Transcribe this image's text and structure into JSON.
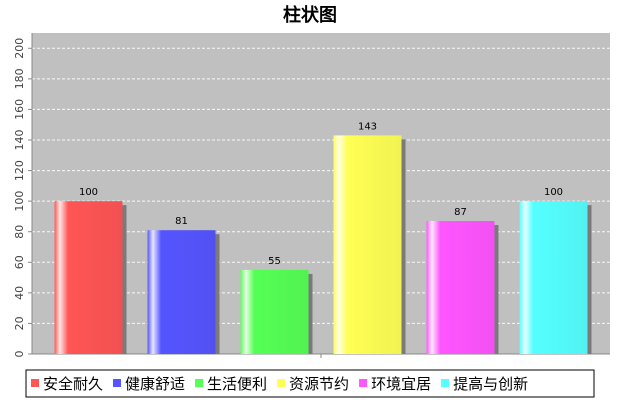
{
  "chart_data": {
    "type": "bar",
    "title": "柱状图",
    "categories": [
      "安全耐久",
      "健康舒适",
      "生活便利",
      "资源节约",
      "环境宜居",
      "提高与创新"
    ],
    "values": [
      100,
      81,
      55,
      143,
      87,
      100
    ],
    "colors": [
      "#ff5555",
      "#5555ff",
      "#55ff55",
      "#ffff55",
      "#ff55ff",
      "#55ffff"
    ],
    "ylim": [
      0,
      210
    ],
    "yticks": [
      0,
      20,
      40,
      60,
      80,
      100,
      120,
      140,
      160,
      180,
      200
    ],
    "xlabel": "",
    "ylabel": "",
    "grid": true,
    "legend_position": "bottom",
    "plot_background": "#c0c0c0"
  }
}
